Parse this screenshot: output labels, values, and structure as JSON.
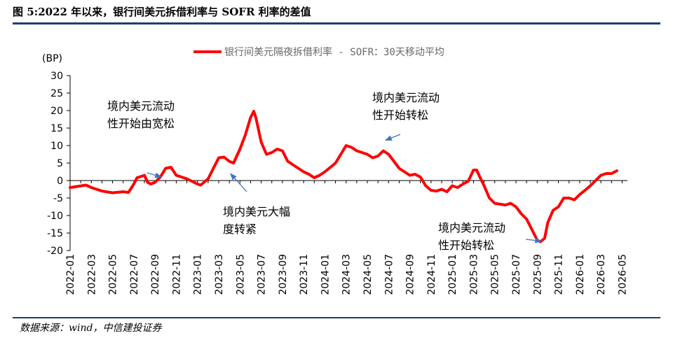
{
  "header": {
    "title": "图 5:2022 年以来，银行间美元拆借利率与 SOFR 利率的差值"
  },
  "footer": {
    "source": "数据来源：wind，中信建投证券"
  },
  "chart_data": {
    "type": "line",
    "ylabel": "(BP)",
    "ylim": [
      -20,
      30
    ],
    "yticks": [
      30,
      25,
      20,
      15,
      10,
      5,
      0,
      -5,
      -10,
      -15,
      -20
    ],
    "x_tick_labels": [
      "2022-01",
      "2022-03",
      "2022-05",
      "2022-07",
      "2022-09",
      "2022-11",
      "2023-01",
      "2023-03",
      "2023-05",
      "2023-07",
      "2023-09",
      "2023-11",
      "2024-01",
      "2024-03",
      "2024-05",
      "2024-07",
      "2024-09",
      "2024-11",
      "2025-01",
      "2025-03",
      "2025-05",
      "2025-07",
      "2025-09",
      "2025-11",
      "2026-01",
      "2026-03",
      "2026-05"
    ],
    "legend_position": "top-center",
    "grid": false,
    "series": [
      {
        "name": "银行间美元隔夜拆借利率 - SOFR：30天移动平均",
        "color": "#ff0000",
        "points": [
          [
            0,
            -2
          ],
          [
            1.5,
            -1.3
          ],
          [
            2,
            -2
          ],
          [
            3,
            -3
          ],
          [
            4,
            -3.5
          ],
          [
            5,
            -3.2
          ],
          [
            5.5,
            -3.4
          ],
          [
            6,
            -1
          ],
          [
            6.3,
            0.8
          ],
          [
            6.8,
            1.3
          ],
          [
            7,
            1.5
          ],
          [
            7.3,
            -0.5
          ],
          [
            7.6,
            -1
          ],
          [
            8,
            -0.5
          ],
          [
            8.5,
            1
          ],
          [
            9,
            3.5
          ],
          [
            9.5,
            3.8
          ],
          [
            10,
            1.5
          ],
          [
            11,
            0.5
          ],
          [
            12,
            -1
          ],
          [
            12.3,
            -1.3
          ],
          [
            13,
            0.5
          ],
          [
            13.5,
            3.5
          ],
          [
            14,
            6.5
          ],
          [
            14.5,
            6.7
          ],
          [
            15,
            5.5
          ],
          [
            15.4,
            5
          ],
          [
            16,
            9
          ],
          [
            16.5,
            13
          ],
          [
            17,
            18
          ],
          [
            17.3,
            19.8
          ],
          [
            17.5,
            18
          ],
          [
            18,
            11
          ],
          [
            18.5,
            7.5
          ],
          [
            19,
            8
          ],
          [
            19.5,
            9
          ],
          [
            20,
            8.5
          ],
          [
            20.5,
            5.5
          ],
          [
            21,
            4.5
          ],
          [
            22,
            2.5
          ],
          [
            22.5,
            1.8
          ],
          [
            23,
            0.8
          ],
          [
            23.5,
            1.5
          ],
          [
            24,
            2.5
          ],
          [
            25,
            5
          ],
          [
            26,
            10
          ],
          [
            26.5,
            9.5
          ],
          [
            27,
            8.5
          ],
          [
            28,
            7.5
          ],
          [
            28.5,
            6.5
          ],
          [
            29,
            7
          ],
          [
            29.5,
            8.5
          ],
          [
            30,
            7.5
          ],
          [
            30.5,
            5.5
          ],
          [
            31,
            3.5
          ],
          [
            31.5,
            2.5
          ],
          [
            32,
            1.5
          ],
          [
            32.5,
            1.8
          ],
          [
            33,
            1
          ],
          [
            33.5,
            -1.5
          ],
          [
            34,
            -2.8
          ],
          [
            34.5,
            -3
          ],
          [
            35,
            -2.5
          ],
          [
            35.5,
            -3.2
          ],
          [
            36,
            -1.5
          ],
          [
            36.5,
            -2
          ],
          [
            37,
            -1
          ],
          [
            37.5,
            -0.2
          ],
          [
            38,
            3
          ],
          [
            38.3,
            3
          ],
          [
            38.6,
            1
          ],
          [
            39,
            -1.5
          ],
          [
            39.5,
            -5
          ],
          [
            40,
            -6.5
          ],
          [
            41,
            -7
          ],
          [
            41.5,
            -6.5
          ],
          [
            42,
            -7.5
          ],
          [
            42.5,
            -9.5
          ],
          [
            43,
            -11
          ],
          [
            43.5,
            -14
          ],
          [
            44,
            -17
          ],
          [
            44.3,
            -17.5
          ],
          [
            44.7,
            -16.5
          ],
          [
            45,
            -12
          ],
          [
            45.5,
            -8.5
          ],
          [
            46,
            -7.5
          ],
          [
            46.5,
            -5
          ],
          [
            47,
            -5
          ],
          [
            47.5,
            -5.5
          ],
          [
            48,
            -4
          ],
          [
            48.5,
            -2.8
          ],
          [
            49,
            -1.5
          ],
          [
            49.5,
            0
          ],
          [
            50,
            1.5
          ],
          [
            50.5,
            2
          ],
          [
            51,
            2
          ],
          [
            51.5,
            2.8
          ]
        ]
      }
    ],
    "annotations": [
      {
        "lines": [
          "境内美元流动",
          "性开始由宽松"
        ],
        "point_x": 8.6,
        "point_y": 1.0
      },
      {
        "lines": [
          "境内美元大幅",
          "度转紧"
        ],
        "point_x": 15.1,
        "point_y": 2.0
      },
      {
        "lines": [
          "境内美元流动",
          "性开始转松"
        ],
        "point_x": 29.7,
        "point_y": 11.5
      },
      {
        "lines": [
          "境内美元流动",
          "性开始转松"
        ],
        "point_x": 44.4,
        "point_y": -17.3
      }
    ]
  }
}
